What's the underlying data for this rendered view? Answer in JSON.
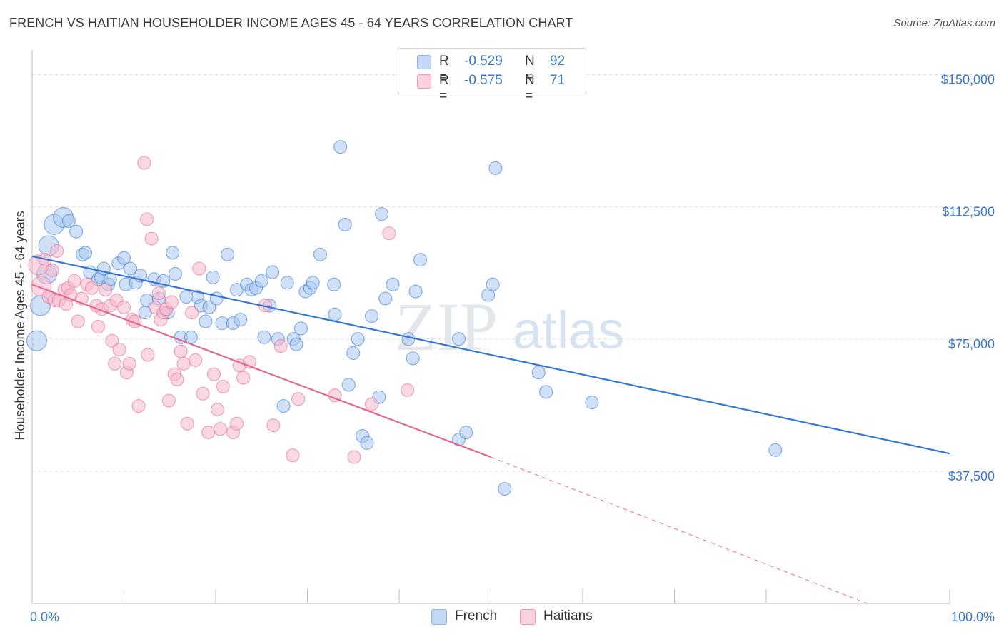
{
  "title": "FRENCH VS HAITIAN HOUSEHOLDER INCOME AGES 45 - 64 YEARS CORRELATION CHART",
  "source": "Source: ZipAtlas.com",
  "watermark": {
    "zip": "ZIP",
    "atlas": "atlas"
  },
  "legend": {
    "rows": [
      {
        "r_label": "R =",
        "r_value": "-0.529",
        "n_label": "N =",
        "n_value": "92",
        "color": "#a9c8f0"
      },
      {
        "r_label": "R =",
        "r_value": "-0.575",
        "n_label": "N =",
        "n_value": "71",
        "color": "#f6b8cc"
      }
    ]
  },
  "bottom_legend": [
    {
      "label": "French",
      "color": "#a9c8f0"
    },
    {
      "label": "Haitians",
      "color": "#f6b8cc"
    }
  ],
  "chart_data": {
    "type": "scatter",
    "title": "FRENCH VS HAITIAN HOUSEHOLDER INCOME AGES 45 - 64 YEARS CORRELATION CHART",
    "xlabel": "",
    "ylabel": "Householder Income Ages 45 - 64 years",
    "xlim": [
      0,
      100
    ],
    "ylim": [
      0,
      157000
    ],
    "x_tick_labels": [
      {
        "value": 0,
        "label": "0.0%"
      },
      {
        "value": 100,
        "label": "100.0%"
      }
    ],
    "y_ticks": [
      {
        "value": 37500,
        "label": "$37,500"
      },
      {
        "value": 75000,
        "label": "$75,000"
      },
      {
        "value": 112500,
        "label": "$112,500"
      },
      {
        "value": 150000,
        "label": "$150,000"
      }
    ],
    "grid": "horizontal dashed",
    "legend_position": "top-center",
    "series": [
      {
        "name": "French",
        "color": "#3577d4",
        "fill": "#a9c8f0",
        "trend": {
          "x0": 0,
          "y0": 98500,
          "x1": 100,
          "y1": 42500,
          "style": "solid"
        },
        "points": [
          [
            0.5,
            74500
          ],
          [
            0.9,
            84500
          ],
          [
            1.6,
            93500
          ],
          [
            1.8,
            101500
          ],
          [
            2.4,
            107500
          ],
          [
            3.4,
            109500
          ],
          [
            4.0,
            108500
          ],
          [
            4.8,
            105500
          ],
          [
            5.5,
            99000
          ],
          [
            5.8,
            99500
          ],
          [
            6.3,
            94000
          ],
          [
            7.2,
            92000
          ],
          [
            7.5,
            92500
          ],
          [
            7.8,
            95000
          ],
          [
            8.3,
            90500
          ],
          [
            8.5,
            92000
          ],
          [
            9.4,
            96500
          ],
          [
            10.0,
            98000
          ],
          [
            10.2,
            90500
          ],
          [
            10.7,
            95000
          ],
          [
            11.3,
            91000
          ],
          [
            11.8,
            93000
          ],
          [
            12.3,
            82500
          ],
          [
            12.5,
            86000
          ],
          [
            13.3,
            92000
          ],
          [
            13.8,
            86500
          ],
          [
            14.3,
            91500
          ],
          [
            14.8,
            82500
          ],
          [
            15.3,
            99500
          ],
          [
            15.6,
            93500
          ],
          [
            16.2,
            75500
          ],
          [
            16.8,
            87000
          ],
          [
            17.3,
            75500
          ],
          [
            18.0,
            87000
          ],
          [
            18.4,
            84500
          ],
          [
            18.9,
            80000
          ],
          [
            19.3,
            84000
          ],
          [
            19.7,
            92500
          ],
          [
            20.1,
            86500
          ],
          [
            20.7,
            79500
          ],
          [
            21.3,
            99000
          ],
          [
            21.9,
            79500
          ],
          [
            22.7,
            80500
          ],
          [
            22.3,
            89000
          ],
          [
            23.4,
            90500
          ],
          [
            23.9,
            89000
          ],
          [
            24.4,
            89500
          ],
          [
            25.0,
            91500
          ],
          [
            25.3,
            75500
          ],
          [
            25.9,
            84500
          ],
          [
            26.2,
            94000
          ],
          [
            26.8,
            75000
          ],
          [
            27.8,
            91000
          ],
          [
            27.4,
            56000
          ],
          [
            28.5,
            75000
          ],
          [
            28.8,
            73500
          ],
          [
            29.3,
            78000
          ],
          [
            29.8,
            88500
          ],
          [
            30.3,
            89500
          ],
          [
            30.6,
            91000
          ],
          [
            31.4,
            99000
          ],
          [
            32.9,
            90500
          ],
          [
            33.0,
            82000
          ],
          [
            33.6,
            129500
          ],
          [
            34.1,
            107500
          ],
          [
            34.5,
            62000
          ],
          [
            35.0,
            71000
          ],
          [
            35.5,
            75000
          ],
          [
            36.0,
            47500
          ],
          [
            36.5,
            45500
          ],
          [
            37.0,
            81500
          ],
          [
            37.8,
            58500
          ],
          [
            38.1,
            110500
          ],
          [
            38.5,
            86500
          ],
          [
            39.3,
            90500
          ],
          [
            41.0,
            75000
          ],
          [
            41.5,
            69500
          ],
          [
            41.8,
            88500
          ],
          [
            42.3,
            97500
          ],
          [
            46.5,
            75000
          ],
          [
            46.5,
            46500
          ],
          [
            47.3,
            48500
          ],
          [
            49.7,
            87500
          ],
          [
            50.2,
            90500
          ],
          [
            50.5,
            123500
          ],
          [
            51.5,
            32500
          ],
          [
            55.2,
            65500
          ],
          [
            56.0,
            60000
          ],
          [
            61.0,
            57000
          ],
          [
            81.0,
            43500
          ]
        ]
      },
      {
        "name": "Haitians",
        "color": "#e36592",
        "fill": "#f6b8cc",
        "trend": {
          "x0": 0,
          "y0": 90500,
          "x1": 50,
          "y1": 41500,
          "style": "solid",
          "dash_to": {
            "x": 91,
            "y": 0
          }
        },
        "points": [
          [
            0.7,
            96000
          ],
          [
            1.0,
            90000
          ],
          [
            1.4,
            97500
          ],
          [
            1.8,
            87000
          ],
          [
            2.2,
            94500
          ],
          [
            2.4,
            86000
          ],
          [
            2.7,
            100000
          ],
          [
            2.9,
            86000
          ],
          [
            3.5,
            89000
          ],
          [
            3.7,
            85000
          ],
          [
            3.9,
            89500
          ],
          [
            4.2,
            87500
          ],
          [
            4.6,
            91500
          ],
          [
            5.0,
            80000
          ],
          [
            5.4,
            86500
          ],
          [
            6.0,
            90500
          ],
          [
            6.5,
            89500
          ],
          [
            7.0,
            84500
          ],
          [
            7.2,
            78500
          ],
          [
            7.6,
            83500
          ],
          [
            8.0,
            89000
          ],
          [
            8.5,
            84500
          ],
          [
            8.7,
            74500
          ],
          [
            9.0,
            68000
          ],
          [
            9.2,
            86000
          ],
          [
            9.5,
            72000
          ],
          [
            10.0,
            84000
          ],
          [
            10.3,
            65500
          ],
          [
            10.6,
            68000
          ],
          [
            10.9,
            80500
          ],
          [
            11.2,
            80000
          ],
          [
            11.6,
            56000
          ],
          [
            12.2,
            125000
          ],
          [
            12.5,
            109000
          ],
          [
            12.6,
            70500
          ],
          [
            13.0,
            103500
          ],
          [
            13.4,
            84000
          ],
          [
            13.8,
            88000
          ],
          [
            14.0,
            80500
          ],
          [
            14.3,
            82500
          ],
          [
            14.6,
            83500
          ],
          [
            14.9,
            57500
          ],
          [
            15.2,
            85500
          ],
          [
            15.5,
            65000
          ],
          [
            15.8,
            63500
          ],
          [
            16.2,
            71500
          ],
          [
            16.5,
            68000
          ],
          [
            16.9,
            51000
          ],
          [
            17.4,
            82500
          ],
          [
            17.8,
            69000
          ],
          [
            18.2,
            95000
          ],
          [
            18.6,
            59500
          ],
          [
            19.2,
            48500
          ],
          [
            19.8,
            65000
          ],
          [
            20.2,
            55000
          ],
          [
            20.5,
            49500
          ],
          [
            20.8,
            61500
          ],
          [
            21.9,
            48500
          ],
          [
            22.3,
            51000
          ],
          [
            22.6,
            67500
          ],
          [
            23.0,
            64000
          ],
          [
            23.7,
            68500
          ],
          [
            25.4,
            84500
          ],
          [
            26.3,
            50500
          ],
          [
            27.1,
            73000
          ],
          [
            28.4,
            42000
          ],
          [
            29.0,
            58000
          ],
          [
            33.0,
            59000
          ],
          [
            35.1,
            41500
          ],
          [
            37.0,
            56500
          ],
          [
            38.9,
            105000
          ],
          [
            40.9,
            60500
          ]
        ]
      }
    ]
  }
}
